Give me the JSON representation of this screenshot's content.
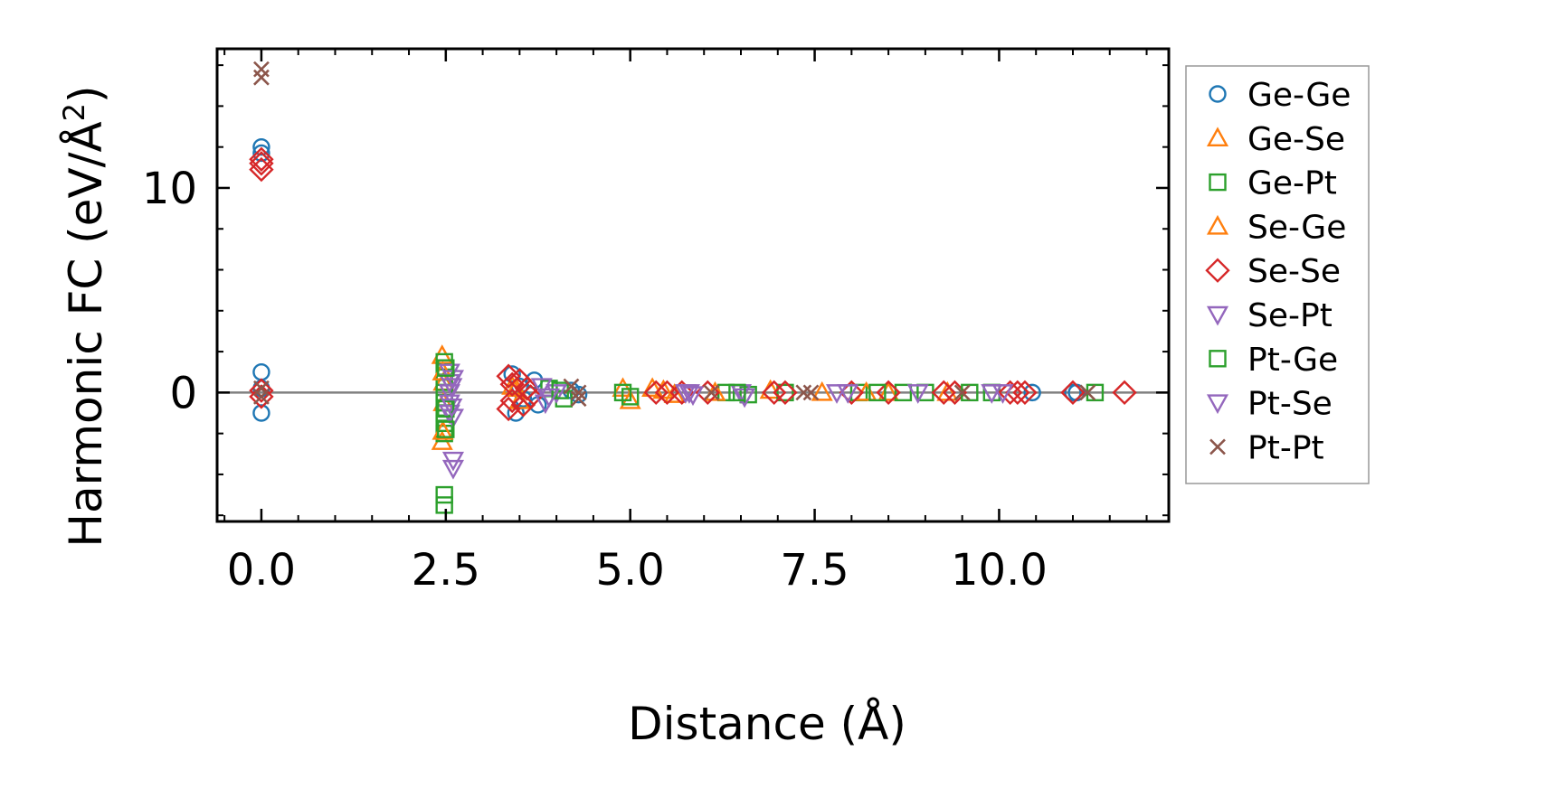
{
  "chart_data": {
    "type": "scatter",
    "xlabel": "Distance (Å)",
    "ylabel_main": "Harmonic FC (eV/Å",
    "ylabel_sup": "2",
    "ylabel_close": ")",
    "xlim": [
      -0.6,
      12.3
    ],
    "ylim": [
      -6.3,
      16.8
    ],
    "x_ticks": [
      0.0,
      2.5,
      5.0,
      7.5,
      10.0
    ],
    "x_tick_labels": [
      "0.0",
      "2.5",
      "5.0",
      "7.5",
      "10.0"
    ],
    "y_ticks": [
      0,
      10
    ],
    "y_tick_labels": [
      "0",
      "10"
    ],
    "zero_line": true,
    "legend_position": "outside-right",
    "series": [
      {
        "name": "Ge-Ge",
        "marker": "circle",
        "color": "#1f77b4",
        "points": [
          [
            0,
            12.0
          ],
          [
            0,
            11.7
          ],
          [
            0,
            1.0
          ],
          [
            0,
            -1.0
          ],
          [
            0,
            0.2
          ],
          [
            3.4,
            0.9
          ],
          [
            3.45,
            -1.0
          ],
          [
            3.5,
            0.3
          ],
          [
            3.55,
            -0.3
          ],
          [
            3.7,
            0.6
          ],
          [
            3.75,
            -0.6
          ],
          [
            4.2,
            0.1
          ],
          [
            4.3,
            -0.1
          ],
          [
            10.45,
            0.0
          ],
          [
            11.05,
            0.0
          ],
          [
            11.0,
            0.0
          ]
        ]
      },
      {
        "name": "Ge-Se",
        "marker": "triangle-up",
        "color": "#ff7f0e",
        "points": [
          [
            2.45,
            1.8
          ],
          [
            2.45,
            -2.4
          ],
          [
            2.47,
            0.5
          ],
          [
            2.47,
            -0.5
          ],
          [
            3.4,
            0.3
          ],
          [
            3.5,
            -0.4
          ],
          [
            4.9,
            0.2
          ],
          [
            5.0,
            -0.4
          ],
          [
            5.3,
            0.2
          ],
          [
            5.6,
            -0.1
          ],
          [
            6.9,
            0.1
          ],
          [
            7.6,
            0.0
          ],
          [
            8.5,
            0.0
          ],
          [
            9.3,
            0.0
          ]
        ]
      },
      {
        "name": "Ge-Pt",
        "marker": "square",
        "color": "#2ca02c",
        "points": [
          [
            2.48,
            1.5
          ],
          [
            2.48,
            1.0
          ],
          [
            2.48,
            0.5
          ],
          [
            2.48,
            0.0
          ],
          [
            2.48,
            -0.5
          ],
          [
            2.48,
            -1.0
          ],
          [
            2.48,
            -1.5
          ],
          [
            2.48,
            -2.0
          ],
          [
            2.48,
            -5.0
          ],
          [
            2.48,
            -5.5
          ],
          [
            3.9,
            0.2
          ],
          [
            4.1,
            -0.3
          ],
          [
            4.9,
            0.0
          ],
          [
            5.0,
            -0.2
          ],
          [
            6.3,
            0.0
          ],
          [
            6.6,
            -0.1
          ],
          [
            7.1,
            0.0
          ],
          [
            8.1,
            0.0
          ],
          [
            8.7,
            0.0
          ],
          [
            9.0,
            0.0
          ],
          [
            9.9,
            0.0
          ],
          [
            11.3,
            0.0
          ]
        ]
      },
      {
        "name": "Se-Ge",
        "marker": "triangle-up",
        "color": "#ff7f0e",
        "points": [
          [
            2.46,
            1.0
          ],
          [
            2.46,
            -1.9
          ],
          [
            3.45,
            0.2
          ],
          [
            5.45,
            0.1
          ],
          [
            6.15,
            0.0
          ],
          [
            8.2,
            0.0
          ]
        ]
      },
      {
        "name": "Se-Se",
        "marker": "diamond",
        "color": "#d62728",
        "points": [
          [
            0,
            11.4
          ],
          [
            0,
            11.2
          ],
          [
            0,
            10.9
          ],
          [
            0,
            0.1
          ],
          [
            0,
            -0.2
          ],
          [
            3.35,
            0.8
          ],
          [
            3.35,
            -0.8
          ],
          [
            3.4,
            0.4
          ],
          [
            3.4,
            -0.4
          ],
          [
            3.5,
            0.6
          ],
          [
            3.55,
            -0.6
          ],
          [
            3.6,
            0.2
          ],
          [
            3.65,
            -0.2
          ],
          [
            5.35,
            0.0
          ],
          [
            5.5,
            0.0
          ],
          [
            5.7,
            0.0
          ],
          [
            6.05,
            0.0
          ],
          [
            6.95,
            0.0
          ],
          [
            7.1,
            0.0
          ],
          [
            8.0,
            0.0
          ],
          [
            8.5,
            0.0
          ],
          [
            9.25,
            0.0
          ],
          [
            9.4,
            0.0
          ],
          [
            10.15,
            0.0
          ],
          [
            10.25,
            0.0
          ],
          [
            10.35,
            0.0
          ],
          [
            11.0,
            0.0
          ],
          [
            11.7,
            0.0
          ]
        ]
      },
      {
        "name": "Se-Pt",
        "marker": "triangle-down",
        "color": "#9467bd",
        "points": [
          [
            2.55,
            1.0
          ],
          [
            2.55,
            0.5
          ],
          [
            2.55,
            0.0
          ],
          [
            2.55,
            -0.5
          ],
          [
            2.55,
            -1.0
          ],
          [
            2.6,
            0.7
          ],
          [
            2.6,
            -1.2
          ],
          [
            2.6,
            -3.3
          ],
          [
            2.6,
            -3.7
          ],
          [
            3.8,
            0.3
          ],
          [
            3.85,
            -0.5
          ],
          [
            4.0,
            0.0
          ],
          [
            5.75,
            0.0
          ],
          [
            5.85,
            -0.1
          ],
          [
            6.5,
            0.0
          ],
          [
            6.55,
            -0.2
          ],
          [
            7.95,
            0.0
          ],
          [
            8.9,
            0.0
          ],
          [
            9.9,
            0.0
          ]
        ]
      },
      {
        "name": "Pt-Ge",
        "marker": "square",
        "color": "#2ca02c",
        "points": [
          [
            2.5,
            1.2
          ],
          [
            2.5,
            -0.8
          ],
          [
            2.5,
            -1.8
          ],
          [
            4.05,
            0.1
          ],
          [
            6.45,
            0.0
          ],
          [
            8.35,
            0.0
          ],
          [
            9.6,
            0.0
          ]
        ]
      },
      {
        "name": "Pt-Se",
        "marker": "triangle-down",
        "color": "#9467bd",
        "points": [
          [
            2.58,
            0.3
          ],
          [
            2.58,
            -0.7
          ],
          [
            3.9,
            -0.2
          ],
          [
            5.8,
            0.0
          ],
          [
            7.8,
            0.0
          ],
          [
            10.05,
            0.0
          ]
        ]
      },
      {
        "name": "Pt-Pt",
        "marker": "x",
        "color": "#8c564b",
        "points": [
          [
            0,
            15.8
          ],
          [
            0,
            15.4
          ],
          [
            0,
            0.2
          ],
          [
            0,
            -0.2
          ],
          [
            4.2,
            0.3
          ],
          [
            4.3,
            -0.3
          ],
          [
            4.3,
            0.0
          ],
          [
            6.1,
            0.0
          ],
          [
            7.35,
            0.0
          ],
          [
            7.45,
            0.0
          ],
          [
            9.5,
            0.0
          ],
          [
            11.2,
            0.0
          ]
        ]
      }
    ]
  }
}
